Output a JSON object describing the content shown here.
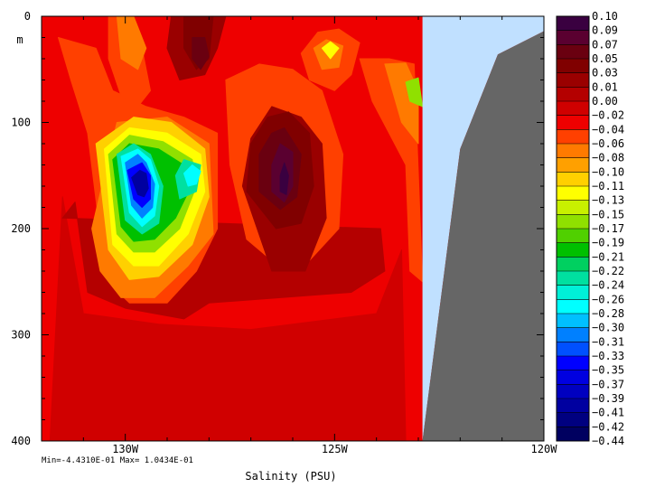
{
  "chart_data": {
    "type": "heatmap",
    "title": "",
    "xlabel": "Salinity (PSU)",
    "ylabel": "m",
    "x_ticks": [
      "130W",
      "125W",
      "120W"
    ],
    "x_tick_values": [
      -130,
      -125,
      -120
    ],
    "xlim": [
      -132,
      -120
    ],
    "y_ticks": [
      "0",
      "100",
      "200",
      "300",
      "400"
    ],
    "y_tick_values": [
      0,
      100,
      200,
      300,
      400
    ],
    "ylim": [
      0,
      400
    ],
    "y_inverted": true,
    "stats": "Min=-4.4310E-01  Max= 1.0434E-01",
    "legend_placement": "right",
    "colorbar_labels": [
      "0.10",
      "0.09",
      "0.07",
      "0.05",
      "0.03",
      "0.01",
      "0.00",
      "−0.02",
      "−0.04",
      "−0.06",
      "−0.08",
      "−0.10",
      "−0.11",
      "−0.13",
      "−0.15",
      "−0.17",
      "−0.19",
      "−0.21",
      "−0.22",
      "−0.24",
      "−0.26",
      "−0.28",
      "−0.30",
      "−0.31",
      "−0.33",
      "−0.35",
      "−0.37",
      "−0.39",
      "−0.41",
      "−0.42",
      "−0.44"
    ],
    "colorbar_colors": [
      "#3a0040",
      "#5a0030",
      "#6a0010",
      "#800000",
      "#9a0000",
      "#b40000",
      "#d00000",
      "#ee0000",
      "#ff4000",
      "#ff7a00",
      "#ffa000",
      "#ffd000",
      "#ffff00",
      "#c8f000",
      "#90e000",
      "#50d000",
      "#00c000",
      "#00d060",
      "#00e0a0",
      "#00f0d8",
      "#00ffff",
      "#00c0ff",
      "#0080ff",
      "#0050ff",
      "#0000ff",
      "#0000e0",
      "#0000c0",
      "#0000a0",
      "#000080",
      "#000060"
    ],
    "background_color": "#ee0000",
    "land_color": "#666666",
    "nodata_color": "#c0e0ff",
    "land_polygon": [
      [
        -122.9,
        400
      ],
      [
        -122.9,
        400
      ],
      [
        -122.0,
        125
      ],
      [
        -121.1,
        36
      ],
      [
        -120.0,
        14
      ],
      [
        -120.0,
        400
      ]
    ],
    "nodata_polygon": [
      [
        -122.9,
        0
      ],
      [
        -120.0,
        0
      ],
      [
        -120.0,
        14
      ],
      [
        -121.1,
        36
      ],
      [
        -122.0,
        125
      ],
      [
        -122.9,
        400
      ]
    ],
    "contour_regions": [
      {
        "color": "#d00000",
        "points": [
          [
            -131.5,
            170
          ],
          [
            -131.0,
            280
          ],
          [
            -129.2,
            290
          ],
          [
            -127.0,
            295
          ],
          [
            -124.0,
            280
          ],
          [
            -123.4,
            220
          ],
          [
            -123.3,
            400
          ],
          [
            -131.8,
            400
          ]
        ]
      },
      {
        "color": "#b40000",
        "points": [
          [
            -131.2,
            175
          ],
          [
            -130.9,
            260
          ],
          [
            -130.0,
            275
          ],
          [
            -128.6,
            285
          ],
          [
            -128.0,
            270
          ],
          [
            -124.6,
            260
          ],
          [
            -123.8,
            240
          ],
          [
            -123.9,
            200
          ],
          [
            -131.5,
            190
          ]
        ]
      },
      {
        "color": "#ff4000",
        "points": [
          [
            -131.6,
            20
          ],
          [
            -131.3,
            60
          ],
          [
            -130.9,
            110
          ],
          [
            -130.6,
            205
          ],
          [
            -130.3,
            255
          ],
          [
            -129.9,
            270
          ],
          [
            -129.0,
            270
          ],
          [
            -128.3,
            240
          ],
          [
            -127.8,
            200
          ],
          [
            -127.8,
            110
          ],
          [
            -128.6,
            95
          ],
          [
            -129.5,
            85
          ],
          [
            -130.3,
            70
          ],
          [
            -130.7,
            30
          ]
        ]
      },
      {
        "color": "#ff4000",
        "points": [
          [
            -129.9,
            0
          ],
          [
            -129.6,
            30
          ],
          [
            -129.4,
            70
          ],
          [
            -129.7,
            85
          ],
          [
            -130.1,
            75
          ],
          [
            -130.4,
            40
          ],
          [
            -130.4,
            0
          ]
        ]
      },
      {
        "color": "#ff4000",
        "points": [
          [
            -127.6,
            60
          ],
          [
            -127.5,
            140
          ],
          [
            -127.1,
            210
          ],
          [
            -126.5,
            230
          ],
          [
            -125.6,
            230
          ],
          [
            -124.9,
            200
          ],
          [
            -124.8,
            130
          ],
          [
            -125.3,
            70
          ],
          [
            -126.0,
            50
          ],
          [
            -126.8,
            45
          ]
        ]
      },
      {
        "color": "#ff4000",
        "points": [
          [
            -124.4,
            40
          ],
          [
            -123.7,
            40
          ],
          [
            -123.1,
            45
          ],
          [
            -122.9,
            250
          ],
          [
            -123.2,
            240
          ],
          [
            -123.3,
            140
          ],
          [
            -123.7,
            110
          ],
          [
            -124.1,
            80
          ]
        ]
      },
      {
        "color": "#ff4000",
        "points": [
          [
            -125.8,
            35
          ],
          [
            -125.4,
            15
          ],
          [
            -124.9,
            12
          ],
          [
            -124.4,
            25
          ],
          [
            -124.6,
            55
          ],
          [
            -125.0,
            70
          ],
          [
            -125.6,
            60
          ]
        ]
      },
      {
        "color": "#ff7a00",
        "points": [
          [
            -130.8,
            200
          ],
          [
            -130.6,
            240
          ],
          [
            -130.1,
            265
          ],
          [
            -129.3,
            265
          ],
          [
            -128.5,
            235
          ],
          [
            -127.9,
            205
          ],
          [
            -128.0,
            120
          ],
          [
            -129.0,
            95
          ],
          [
            -130.2,
            100
          ]
        ]
      },
      {
        "color": "#ff7a00",
        "points": [
          [
            -129.8,
            0
          ],
          [
            -129.5,
            30
          ],
          [
            -129.7,
            50
          ],
          [
            -130.1,
            40
          ],
          [
            -130.2,
            0
          ]
        ]
      },
      {
        "color": "#ff7a00",
        "points": [
          [
            -125.5,
            30
          ],
          [
            -125.2,
            22
          ],
          [
            -124.8,
            28
          ],
          [
            -124.9,
            48
          ],
          [
            -125.3,
            50
          ]
        ]
      },
      {
        "color": "#ff7a00",
        "points": [
          [
            -123.8,
            45
          ],
          [
            -123.3,
            44
          ],
          [
            -123.0,
            70
          ],
          [
            -123.0,
            120
          ],
          [
            -123.4,
            100
          ]
        ]
      },
      {
        "color": "#ffd000",
        "points": [
          [
            -130.7,
            120
          ],
          [
            -130.4,
            220
          ],
          [
            -129.9,
            248
          ],
          [
            -129.2,
            245
          ],
          [
            -128.4,
            215
          ],
          [
            -128.0,
            170
          ],
          [
            -128.1,
            125
          ],
          [
            -128.9,
            100
          ],
          [
            -129.8,
            95
          ]
        ]
      },
      {
        "color": "#ffff00",
        "points": [
          [
            -125.3,
            30
          ],
          [
            -125.1,
            24
          ],
          [
            -124.9,
            30
          ],
          [
            -125.1,
            40
          ]
        ]
      },
      {
        "color": "#ffff00",
        "points": [
          [
            -130.5,
            125
          ],
          [
            -130.3,
            215
          ],
          [
            -129.8,
            235
          ],
          [
            -129.2,
            235
          ],
          [
            -128.5,
            205
          ],
          [
            -128.1,
            165
          ],
          [
            -128.2,
            130
          ],
          [
            -129.0,
            110
          ],
          [
            -129.9,
            105
          ]
        ]
      },
      {
        "color": "#90e000",
        "points": [
          [
            -130.4,
            130
          ],
          [
            -130.2,
            205
          ],
          [
            -129.8,
            222
          ],
          [
            -129.3,
            222
          ],
          [
            -128.7,
            200
          ],
          [
            -128.3,
            160
          ],
          [
            -128.4,
            135
          ],
          [
            -129.1,
            118
          ],
          [
            -129.9,
            112
          ]
        ]
      },
      {
        "color": "#90e000",
        "points": [
          [
            -123.3,
            62
          ],
          [
            -123.0,
            58
          ],
          [
            -122.9,
            85
          ],
          [
            -123.2,
            80
          ]
        ]
      },
      {
        "color": "#00c000",
        "points": [
          [
            -130.3,
            135
          ],
          [
            -130.1,
            198
          ],
          [
            -129.8,
            212
          ],
          [
            -129.3,
            210
          ],
          [
            -128.8,
            190
          ],
          [
            -128.4,
            158
          ],
          [
            -128.6,
            140
          ],
          [
            -129.2,
            125
          ],
          [
            -129.9,
            120
          ]
        ]
      },
      {
        "color": "#00e0a0",
        "points": [
          [
            -128.8,
            150
          ],
          [
            -128.6,
            135
          ],
          [
            -128.2,
            140
          ],
          [
            -128.3,
            165
          ],
          [
            -128.7,
            172
          ]
        ]
      },
      {
        "color": "#00e0a0",
        "points": [
          [
            -130.2,
            130
          ],
          [
            -130.0,
            192
          ],
          [
            -129.6,
            205
          ],
          [
            -129.2,
            195
          ],
          [
            -129.1,
            160
          ],
          [
            -129.4,
            130
          ],
          [
            -129.8,
            120
          ]
        ]
      },
      {
        "color": "#00ffff",
        "points": [
          [
            -128.6,
            148
          ],
          [
            -128.4,
            140
          ],
          [
            -128.2,
            146
          ],
          [
            -128.3,
            158
          ],
          [
            -128.5,
            160
          ]
        ]
      },
      {
        "color": "#00ffff",
        "points": [
          [
            -130.1,
            132
          ],
          [
            -129.9,
            185
          ],
          [
            -129.6,
            198
          ],
          [
            -129.3,
            188
          ],
          [
            -129.2,
            160
          ],
          [
            -129.4,
            135
          ],
          [
            -129.7,
            125
          ]
        ]
      },
      {
        "color": "#0080ff",
        "points": [
          [
            -130.0,
            138
          ],
          [
            -129.85,
            178
          ],
          [
            -129.6,
            190
          ],
          [
            -129.35,
            180
          ],
          [
            -129.3,
            158
          ],
          [
            -129.5,
            138
          ],
          [
            -129.7,
            130
          ]
        ]
      },
      {
        "color": "#0000ff",
        "points": [
          [
            -129.95,
            145
          ],
          [
            -129.8,
            172
          ],
          [
            -129.6,
            180
          ],
          [
            -129.4,
            172
          ],
          [
            -129.4,
            150
          ],
          [
            -129.6,
            138
          ]
        ]
      },
      {
        "color": "#0000a0",
        "points": [
          [
            -129.85,
            152
          ],
          [
            -129.7,
            168
          ],
          [
            -129.55,
            170
          ],
          [
            -129.45,
            162
          ],
          [
            -129.5,
            148
          ],
          [
            -129.65,
            145
          ]
        ]
      },
      {
        "color": "#9a0000",
        "points": [
          [
            -128.9,
            0
          ],
          [
            -129.0,
            30
          ],
          [
            -128.7,
            60
          ],
          [
            -128.1,
            55
          ],
          [
            -127.8,
            30
          ],
          [
            -127.6,
            0
          ]
        ]
      },
      {
        "color": "#9a0000",
        "points": [
          [
            -127.0,
            115
          ],
          [
            -127.2,
            160
          ],
          [
            -126.5,
            240
          ],
          [
            -125.7,
            240
          ],
          [
            -125.2,
            190
          ],
          [
            -125.3,
            120
          ],
          [
            -125.8,
            95
          ],
          [
            -126.5,
            85
          ]
        ]
      },
      {
        "color": "#800000",
        "points": [
          [
            -127.0,
            120
          ],
          [
            -127.1,
            165
          ],
          [
            -126.4,
            200
          ],
          [
            -125.8,
            195
          ],
          [
            -125.5,
            160
          ],
          [
            -125.6,
            110
          ],
          [
            -126.1,
            90
          ],
          [
            -126.6,
            95
          ]
        ]
      },
      {
        "color": "#6a0010",
        "points": [
          [
            -126.8,
            130
          ],
          [
            -126.8,
            165
          ],
          [
            -126.3,
            182
          ],
          [
            -125.9,
            170
          ],
          [
            -125.8,
            130
          ],
          [
            -126.2,
            105
          ],
          [
            -126.5,
            110
          ]
        ]
      },
      {
        "color": "#5a0030",
        "points": [
          [
            -126.5,
            140
          ],
          [
            -126.5,
            165
          ],
          [
            -126.2,
            175
          ],
          [
            -126.0,
            160
          ],
          [
            -126.0,
            128
          ],
          [
            -126.3,
            120
          ]
        ]
      },
      {
        "color": "#3a0040",
        "points": [
          [
            -126.3,
            150
          ],
          [
            -126.3,
            165
          ],
          [
            -126.15,
            168
          ],
          [
            -126.1,
            150
          ],
          [
            -126.2,
            138
          ]
        ]
      },
      {
        "color": "#800000",
        "points": [
          [
            -128.6,
            0
          ],
          [
            -128.6,
            30
          ],
          [
            -128.3,
            50
          ],
          [
            -128.0,
            40
          ],
          [
            -127.9,
            0
          ]
        ]
      },
      {
        "color": "#6a0010",
        "points": [
          [
            -128.4,
            20
          ],
          [
            -128.4,
            40
          ],
          [
            -128.2,
            50
          ],
          [
            -128.0,
            38
          ],
          [
            -128.1,
            20
          ]
        ]
      }
    ]
  }
}
